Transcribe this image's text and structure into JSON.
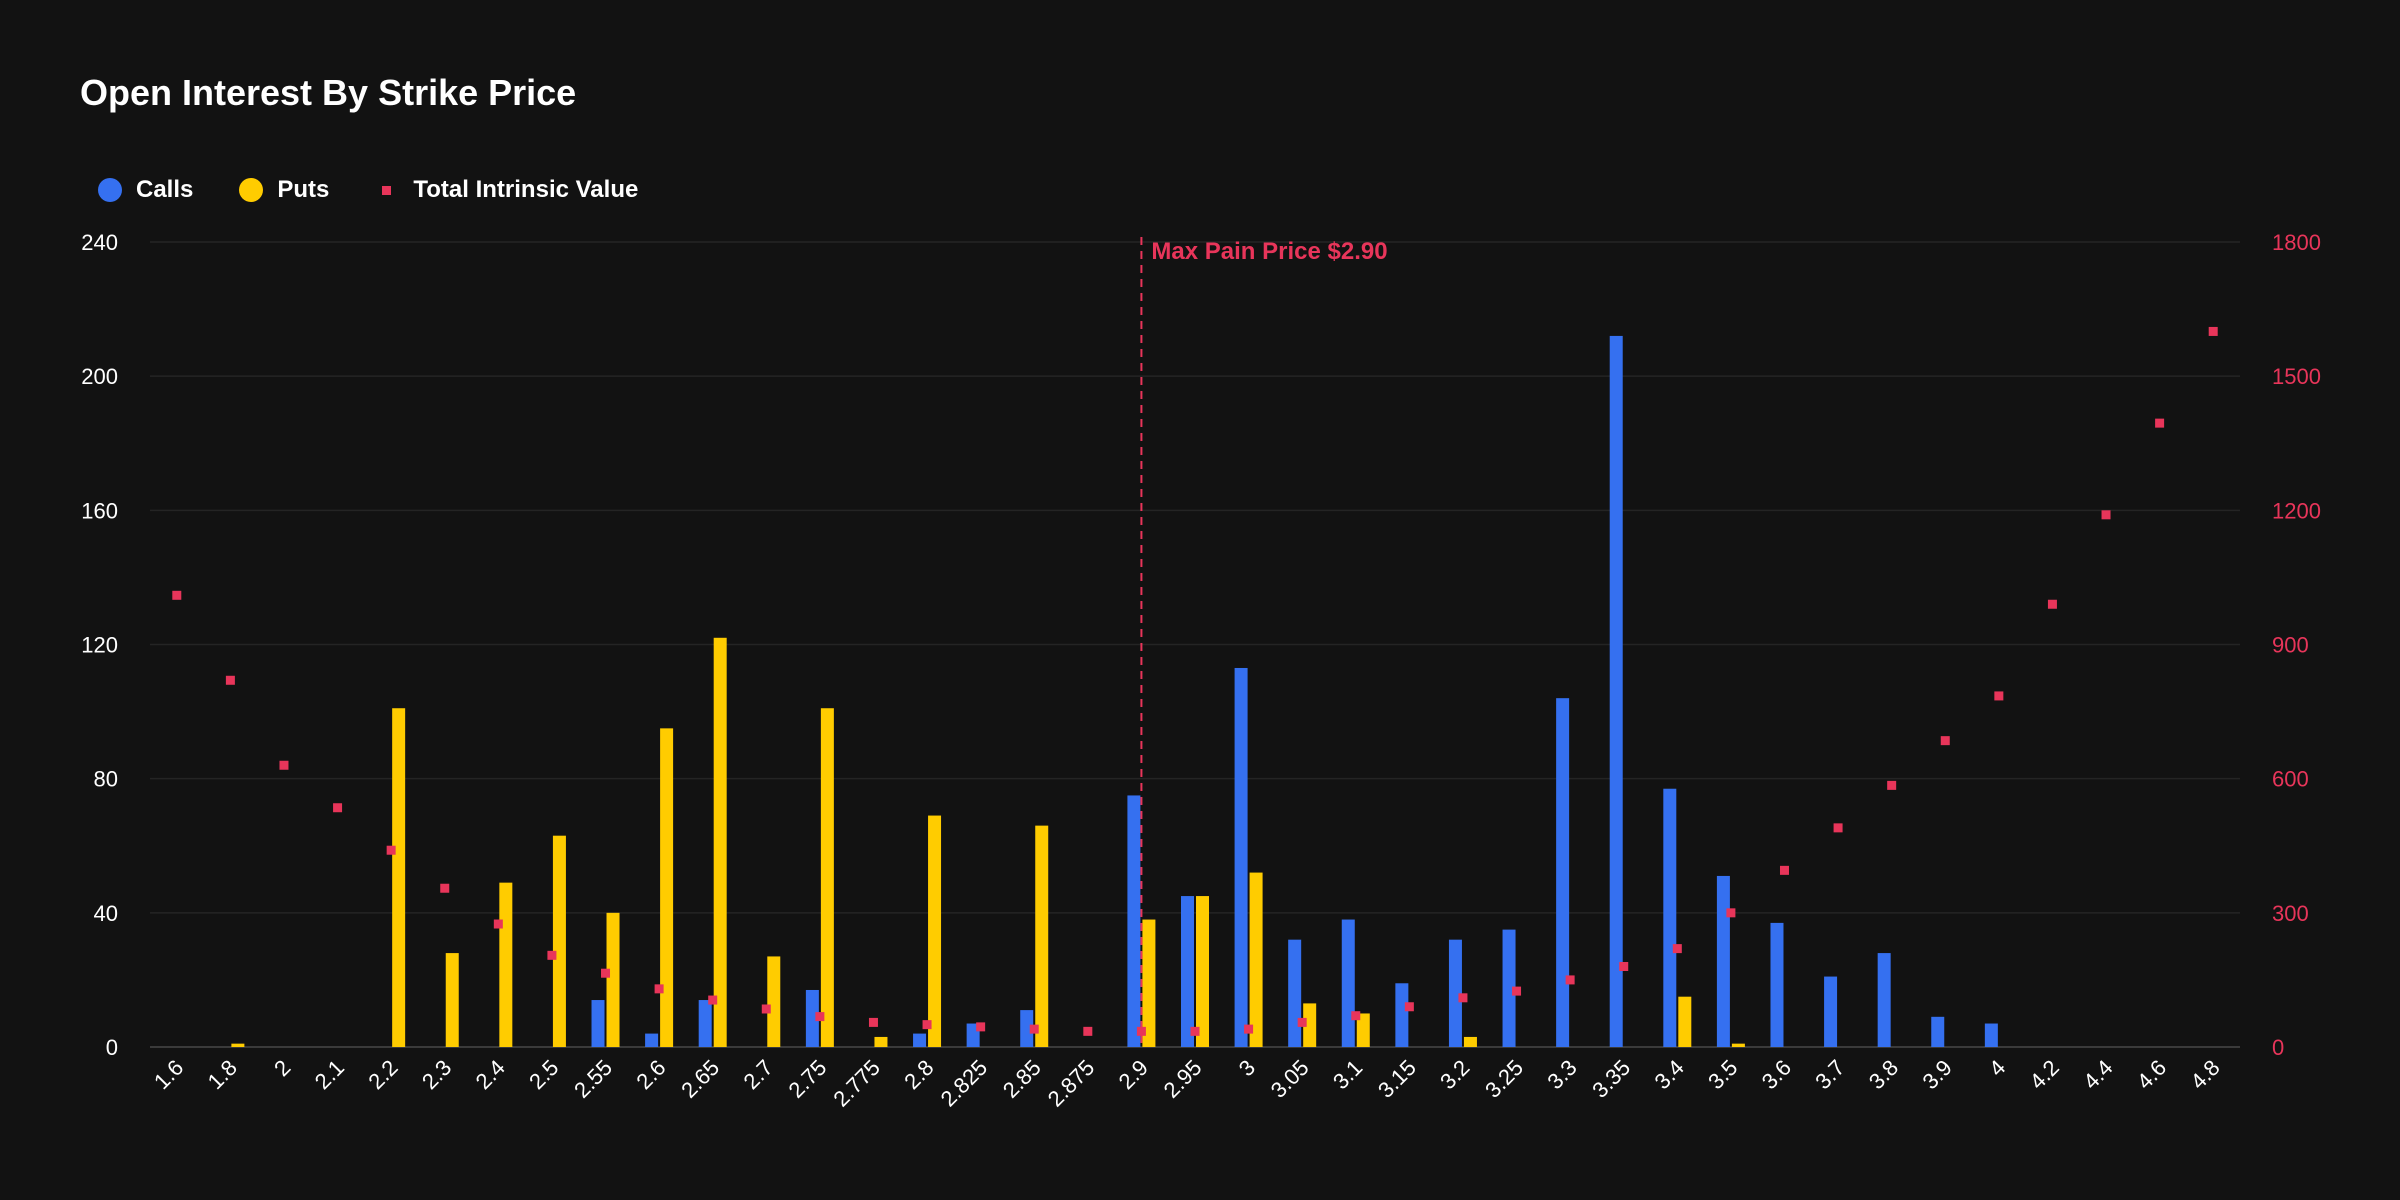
{
  "chart_data": {
    "type": "bar",
    "title": "Open Interest By Strike Price",
    "categories": [
      "1.6",
      "1.8",
      "2",
      "2.1",
      "2.2",
      "2.3",
      "2.4",
      "2.5",
      "2.55",
      "2.6",
      "2.65",
      "2.7",
      "2.75",
      "2.775",
      "2.8",
      "2.825",
      "2.85",
      "2.875",
      "2.9",
      "2.95",
      "3",
      "3.05",
      "3.1",
      "3.15",
      "3.2",
      "3.25",
      "3.3",
      "3.35",
      "3.4",
      "3.5",
      "3.6",
      "3.7",
      "3.8",
      "3.9",
      "4",
      "4.2",
      "4.4",
      "4.6",
      "4.8"
    ],
    "series": [
      {
        "name": "Calls",
        "type": "bar",
        "axis": "left",
        "color": "#3570f0",
        "values": [
          0,
          0,
          0,
          0,
          0,
          0,
          0,
          0,
          14,
          4,
          14,
          0,
          17,
          0,
          4,
          7,
          11,
          0,
          75,
          45,
          113,
          32,
          38,
          19,
          32,
          35,
          104,
          212,
          77,
          51,
          37,
          21,
          28,
          9,
          7,
          0,
          0,
          0,
          0
        ]
      },
      {
        "name": "Puts",
        "type": "bar",
        "axis": "left",
        "color": "#ffcc00",
        "values": [
          0,
          1,
          0,
          0,
          101,
          28,
          49,
          63,
          40,
          95,
          122,
          27,
          101,
          3,
          69,
          0,
          66,
          0,
          38,
          45,
          52,
          13,
          10,
          0,
          3,
          0,
          0,
          0,
          15,
          1,
          0,
          0,
          0,
          0,
          0,
          0,
          0,
          0,
          0
        ]
      },
      {
        "name": "Total Intrinsic Value",
        "type": "scatter",
        "axis": "right",
        "color": "#e8355a",
        "values": [
          1010,
          820,
          630,
          535,
          440,
          355,
          275,
          205,
          165,
          130,
          105,
          85,
          68,
          55,
          50,
          45,
          40,
          35,
          35,
          35,
          40,
          55,
          70,
          90,
          110,
          125,
          150,
          180,
          220,
          300,
          395,
          490,
          585,
          685,
          785,
          990,
          1190,
          1395,
          1600
        ]
      }
    ],
    "y_left": {
      "min": 0,
      "max": 240,
      "ticks": [
        0,
        40,
        80,
        120,
        160,
        200,
        240
      ]
    },
    "y_right": {
      "min": 0,
      "max": 1800,
      "ticks": [
        0,
        300,
        600,
        900,
        1200,
        1500,
        1800
      ]
    },
    "grid": true,
    "legend_position": "top-left",
    "annotation": {
      "category": "2.9",
      "label": "Max Pain Price $2.90",
      "style": "dashed-vertical-line"
    },
    "colors": {
      "background": "#121212",
      "grid": "#242424",
      "axis": "#3a3a3a",
      "tick_text": "#ffffff",
      "right_tick_text": "#e8355a"
    }
  }
}
